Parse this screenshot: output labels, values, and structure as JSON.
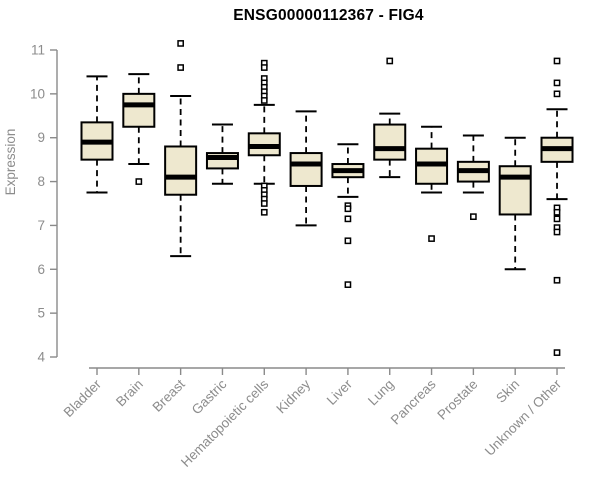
{
  "title": "ENSG00000112367 - FIG4",
  "colors": {
    "background": "#FFFFFF",
    "box_fill": "#EEE8CF",
    "box_border": "#000000",
    "median": "#000000",
    "whisker": "#000000",
    "outlier_stroke": "#000000",
    "outlier_fill": "#FFFFFF",
    "axis_line": "#8A8A8A",
    "tick_label": "#8C8C8C",
    "title_color": "#000000"
  },
  "chart_data": {
    "type": "boxplot",
    "title": "ENSG00000112367 - FIG4",
    "xlabel": "",
    "ylabel": "Expression",
    "ylim": [
      4,
      11
    ],
    "yticks": [
      4,
      5,
      6,
      7,
      8,
      9,
      10,
      11
    ],
    "grid": false,
    "legend": "none",
    "categories": [
      "Bladder",
      "Brain",
      "Breast",
      "Gastric",
      "Hematopoietic cells",
      "Kidney",
      "Liver",
      "Lung",
      "Pancreas",
      "Prostate",
      "Skin",
      "Unknown / Other"
    ],
    "series": [
      {
        "name": "Bladder",
        "whisker_low": 7.75,
        "q1": 8.5,
        "median": 8.9,
        "q3": 9.35,
        "whisker_high": 10.4,
        "outliers": []
      },
      {
        "name": "Brain",
        "whisker_low": 8.4,
        "q1": 9.25,
        "median": 9.75,
        "q3": 10.0,
        "whisker_high": 10.45,
        "outliers": [
          8.0
        ]
      },
      {
        "name": "Breast",
        "whisker_low": 6.3,
        "q1": 7.7,
        "median": 8.1,
        "q3": 8.8,
        "whisker_high": 9.95,
        "outliers": [
          11.15,
          10.6
        ]
      },
      {
        "name": "Gastric",
        "whisker_low": 7.95,
        "q1": 8.3,
        "median": 8.55,
        "q3": 8.65,
        "whisker_high": 9.3,
        "outliers": []
      },
      {
        "name": "Hematopoietic cells",
        "whisker_low": 7.95,
        "q1": 8.6,
        "median": 8.8,
        "q3": 9.1,
        "whisker_high": 9.75,
        "outliers": [
          10.7,
          10.6,
          10.35,
          10.25,
          10.15,
          10.05,
          9.95,
          9.85,
          7.9,
          7.8,
          7.7,
          7.6,
          7.5,
          7.3
        ]
      },
      {
        "name": "Kidney",
        "whisker_low": 7.0,
        "q1": 7.9,
        "median": 8.4,
        "q3": 8.65,
        "whisker_high": 9.6,
        "outliers": []
      },
      {
        "name": "Liver",
        "whisker_low": 7.65,
        "q1": 8.1,
        "median": 8.25,
        "q3": 8.4,
        "whisker_high": 8.85,
        "outliers": [
          7.45,
          7.38,
          7.15,
          6.65,
          5.65
        ]
      },
      {
        "name": "Lung",
        "whisker_low": 8.1,
        "q1": 8.5,
        "median": 8.75,
        "q3": 9.3,
        "whisker_high": 9.55,
        "outliers": [
          10.75
        ]
      },
      {
        "name": "Pancreas",
        "whisker_low": 7.75,
        "q1": 7.95,
        "median": 8.4,
        "q3": 8.75,
        "whisker_high": 9.25,
        "outliers": [
          6.7
        ]
      },
      {
        "name": "Prostate",
        "whisker_low": 7.75,
        "q1": 8.0,
        "median": 8.25,
        "q3": 8.45,
        "whisker_high": 9.05,
        "outliers": [
          7.2
        ]
      },
      {
        "name": "Skin",
        "whisker_low": 6.0,
        "q1": 7.25,
        "median": 8.1,
        "q3": 8.35,
        "whisker_high": 9.0,
        "outliers": []
      },
      {
        "name": "Unknown / Other",
        "whisker_low": 7.6,
        "q1": 8.45,
        "median": 8.75,
        "q3": 9.0,
        "whisker_high": 9.65,
        "outliers": [
          10.75,
          10.25,
          10.0,
          7.4,
          7.3,
          7.15,
          6.95,
          6.85,
          5.75,
          4.1
        ]
      }
    ]
  }
}
